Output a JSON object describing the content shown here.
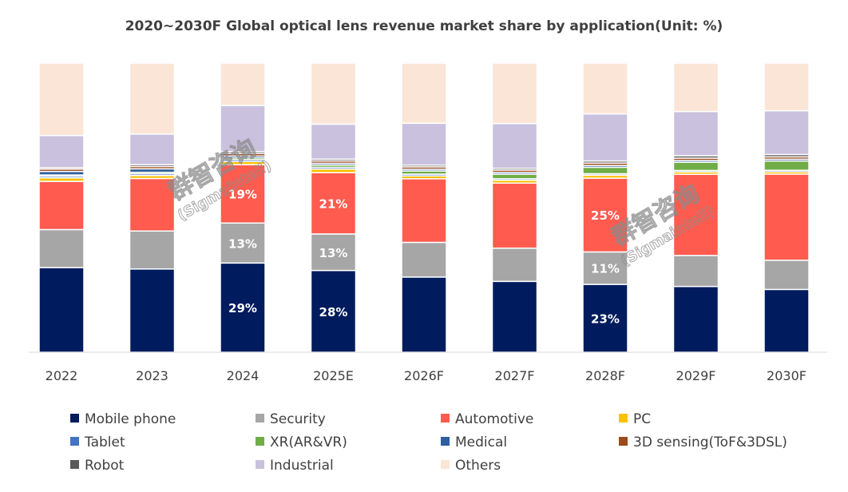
{
  "chart_data": {
    "type": "bar",
    "stacked": true,
    "title": "2020~2030F Global optical lens revenue market share by application(Unit: %)",
    "xlabel": "",
    "ylabel": "",
    "ylim": [
      0,
      100
    ],
    "grid": false,
    "legend_position": "bottom",
    "categories": [
      "2022",
      "2023",
      "2024",
      "2025E",
      "2026F",
      "2027F",
      "2028F",
      "2029F",
      "2030F"
    ],
    "series": [
      {
        "name": "Mobile phone",
        "color": "#001b5e",
        "values": [
          29,
          28.5,
          29,
          28,
          26,
          24.5,
          23,
          22.3,
          21.5
        ]
      },
      {
        "name": "Security",
        "color": "#a6a6a6",
        "values": [
          13,
          13,
          13,
          12.5,
          12,
          11.5,
          11,
          10.5,
          10
        ]
      },
      {
        "name": "Automotive",
        "color": "#ff5b4f",
        "values": [
          16.5,
          18,
          19,
          21,
          22,
          22.5,
          25,
          27.5,
          29.5
        ]
      },
      {
        "name": "PC",
        "color": "#ffc000",
        "values": [
          1.2,
          1.0,
          1.0,
          1.2,
          1.0,
          1.0,
          1.0,
          0.8,
          0.8
        ]
      },
      {
        "name": "Tablet",
        "color": "#4472c4",
        "values": [
          0.6,
          0.6,
          0.6,
          0.6,
          0.6,
          0.5,
          0.5,
          0.5,
          0.5
        ]
      },
      {
        "name": "XR(AR&VR)",
        "color": "#70ad47",
        "values": [
          0.4,
          0.5,
          0.6,
          0.8,
          1.1,
          1.6,
          2.2,
          2.8,
          3.2
        ]
      },
      {
        "name": "Medical",
        "color": "#2e5f9e",
        "values": [
          1.2,
          1.2,
          0.6,
          0.6,
          0.6,
          0.6,
          0.6,
          0.6,
          0.6
        ]
      },
      {
        "name": "3D sensing(ToF&3DSL)",
        "color": "#9c4a1c",
        "values": [
          0.8,
          0.8,
          0.8,
          0.8,
          0.8,
          0.8,
          0.8,
          0.8,
          0.8
        ]
      },
      {
        "name": "Robot",
        "color": "#595959",
        "values": [
          0.5,
          0.6,
          0.6,
          0.6,
          0.6,
          0.6,
          0.7,
          0.8,
          0.8
        ]
      },
      {
        "name": "Industrial",
        "color": "#c9c1de",
        "values": [
          11,
          10.5,
          15,
          12,
          14.5,
          15.5,
          16,
          15,
          15
        ]
      },
      {
        "name": "Others",
        "color": "#fbe5d6",
        "values": [
          24.8,
          24.3,
          13.8,
          20.9,
          20.8,
          20.9,
          17.2,
          16.4,
          16.3
        ]
      }
    ],
    "data_labels": [
      {
        "category": "2024",
        "series": "Mobile phone",
        "text": "29%"
      },
      {
        "category": "2024",
        "series": "Security",
        "text": "13%"
      },
      {
        "category": "2024",
        "series": "Automotive",
        "text": "19%"
      },
      {
        "category": "2025E",
        "series": "Mobile phone",
        "text": "28%"
      },
      {
        "category": "2025E",
        "series": "Security",
        "text": "13%"
      },
      {
        "category": "2025E",
        "series": "Automotive",
        "text": "21%"
      },
      {
        "category": "2028F",
        "series": "Mobile phone",
        "text": "23%"
      },
      {
        "category": "2028F",
        "series": "Security",
        "text": "11%"
      },
      {
        "category": "2028F",
        "series": "Automotive",
        "text": "25%"
      }
    ]
  },
  "watermarks": [
    {
      "cn": "群智咨询",
      "en": "(Sigmaintell)"
    },
    {
      "cn": "群智咨询",
      "en": "(Sigmaintell)"
    }
  ]
}
